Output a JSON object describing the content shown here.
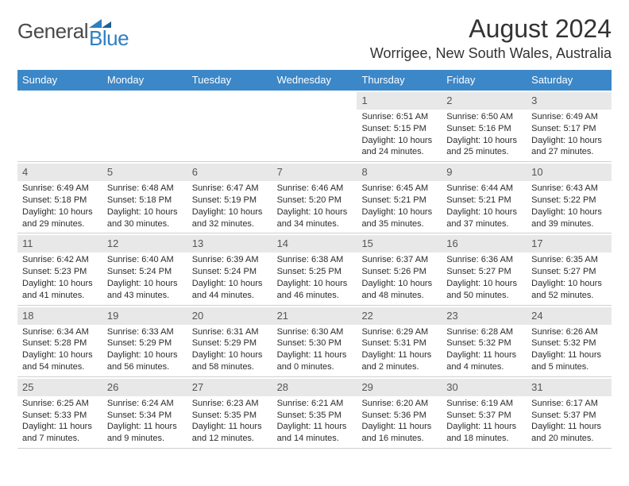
{
  "logo": {
    "word1": "General",
    "word2": "Blue"
  },
  "title": "August 2024",
  "location": "Worrigee, New South Wales, Australia",
  "colors": {
    "header_bg": "#3b87c8",
    "header_fg": "#ffffff",
    "daynum_bg": "#e8e8e8",
    "border": "#cfcfcf",
    "logo_gray": "#4a4a4a",
    "logo_blue": "#2f7fc2"
  },
  "dayNames": [
    "Sunday",
    "Monday",
    "Tuesday",
    "Wednesday",
    "Thursday",
    "Friday",
    "Saturday"
  ],
  "weeks": [
    [
      {
        "n": "",
        "sr": "",
        "ss": "",
        "dl": ""
      },
      {
        "n": "",
        "sr": "",
        "ss": "",
        "dl": ""
      },
      {
        "n": "",
        "sr": "",
        "ss": "",
        "dl": ""
      },
      {
        "n": "",
        "sr": "",
        "ss": "",
        "dl": ""
      },
      {
        "n": "1",
        "sr": "Sunrise: 6:51 AM",
        "ss": "Sunset: 5:15 PM",
        "dl": "Daylight: 10 hours and 24 minutes."
      },
      {
        "n": "2",
        "sr": "Sunrise: 6:50 AM",
        "ss": "Sunset: 5:16 PM",
        "dl": "Daylight: 10 hours and 25 minutes."
      },
      {
        "n": "3",
        "sr": "Sunrise: 6:49 AM",
        "ss": "Sunset: 5:17 PM",
        "dl": "Daylight: 10 hours and 27 minutes."
      }
    ],
    [
      {
        "n": "4",
        "sr": "Sunrise: 6:49 AM",
        "ss": "Sunset: 5:18 PM",
        "dl": "Daylight: 10 hours and 29 minutes."
      },
      {
        "n": "5",
        "sr": "Sunrise: 6:48 AM",
        "ss": "Sunset: 5:18 PM",
        "dl": "Daylight: 10 hours and 30 minutes."
      },
      {
        "n": "6",
        "sr": "Sunrise: 6:47 AM",
        "ss": "Sunset: 5:19 PM",
        "dl": "Daylight: 10 hours and 32 minutes."
      },
      {
        "n": "7",
        "sr": "Sunrise: 6:46 AM",
        "ss": "Sunset: 5:20 PM",
        "dl": "Daylight: 10 hours and 34 minutes."
      },
      {
        "n": "8",
        "sr": "Sunrise: 6:45 AM",
        "ss": "Sunset: 5:21 PM",
        "dl": "Daylight: 10 hours and 35 minutes."
      },
      {
        "n": "9",
        "sr": "Sunrise: 6:44 AM",
        "ss": "Sunset: 5:21 PM",
        "dl": "Daylight: 10 hours and 37 minutes."
      },
      {
        "n": "10",
        "sr": "Sunrise: 6:43 AM",
        "ss": "Sunset: 5:22 PM",
        "dl": "Daylight: 10 hours and 39 minutes."
      }
    ],
    [
      {
        "n": "11",
        "sr": "Sunrise: 6:42 AM",
        "ss": "Sunset: 5:23 PM",
        "dl": "Daylight: 10 hours and 41 minutes."
      },
      {
        "n": "12",
        "sr": "Sunrise: 6:40 AM",
        "ss": "Sunset: 5:24 PM",
        "dl": "Daylight: 10 hours and 43 minutes."
      },
      {
        "n": "13",
        "sr": "Sunrise: 6:39 AM",
        "ss": "Sunset: 5:24 PM",
        "dl": "Daylight: 10 hours and 44 minutes."
      },
      {
        "n": "14",
        "sr": "Sunrise: 6:38 AM",
        "ss": "Sunset: 5:25 PM",
        "dl": "Daylight: 10 hours and 46 minutes."
      },
      {
        "n": "15",
        "sr": "Sunrise: 6:37 AM",
        "ss": "Sunset: 5:26 PM",
        "dl": "Daylight: 10 hours and 48 minutes."
      },
      {
        "n": "16",
        "sr": "Sunrise: 6:36 AM",
        "ss": "Sunset: 5:27 PM",
        "dl": "Daylight: 10 hours and 50 minutes."
      },
      {
        "n": "17",
        "sr": "Sunrise: 6:35 AM",
        "ss": "Sunset: 5:27 PM",
        "dl": "Daylight: 10 hours and 52 minutes."
      }
    ],
    [
      {
        "n": "18",
        "sr": "Sunrise: 6:34 AM",
        "ss": "Sunset: 5:28 PM",
        "dl": "Daylight: 10 hours and 54 minutes."
      },
      {
        "n": "19",
        "sr": "Sunrise: 6:33 AM",
        "ss": "Sunset: 5:29 PM",
        "dl": "Daylight: 10 hours and 56 minutes."
      },
      {
        "n": "20",
        "sr": "Sunrise: 6:31 AM",
        "ss": "Sunset: 5:29 PM",
        "dl": "Daylight: 10 hours and 58 minutes."
      },
      {
        "n": "21",
        "sr": "Sunrise: 6:30 AM",
        "ss": "Sunset: 5:30 PM",
        "dl": "Daylight: 11 hours and 0 minutes."
      },
      {
        "n": "22",
        "sr": "Sunrise: 6:29 AM",
        "ss": "Sunset: 5:31 PM",
        "dl": "Daylight: 11 hours and 2 minutes."
      },
      {
        "n": "23",
        "sr": "Sunrise: 6:28 AM",
        "ss": "Sunset: 5:32 PM",
        "dl": "Daylight: 11 hours and 4 minutes."
      },
      {
        "n": "24",
        "sr": "Sunrise: 6:26 AM",
        "ss": "Sunset: 5:32 PM",
        "dl": "Daylight: 11 hours and 5 minutes."
      }
    ],
    [
      {
        "n": "25",
        "sr": "Sunrise: 6:25 AM",
        "ss": "Sunset: 5:33 PM",
        "dl": "Daylight: 11 hours and 7 minutes."
      },
      {
        "n": "26",
        "sr": "Sunrise: 6:24 AM",
        "ss": "Sunset: 5:34 PM",
        "dl": "Daylight: 11 hours and 9 minutes."
      },
      {
        "n": "27",
        "sr": "Sunrise: 6:23 AM",
        "ss": "Sunset: 5:35 PM",
        "dl": "Daylight: 11 hours and 12 minutes."
      },
      {
        "n": "28",
        "sr": "Sunrise: 6:21 AM",
        "ss": "Sunset: 5:35 PM",
        "dl": "Daylight: 11 hours and 14 minutes."
      },
      {
        "n": "29",
        "sr": "Sunrise: 6:20 AM",
        "ss": "Sunset: 5:36 PM",
        "dl": "Daylight: 11 hours and 16 minutes."
      },
      {
        "n": "30",
        "sr": "Sunrise: 6:19 AM",
        "ss": "Sunset: 5:37 PM",
        "dl": "Daylight: 11 hours and 18 minutes."
      },
      {
        "n": "31",
        "sr": "Sunrise: 6:17 AM",
        "ss": "Sunset: 5:37 PM",
        "dl": "Daylight: 11 hours and 20 minutes."
      }
    ]
  ]
}
